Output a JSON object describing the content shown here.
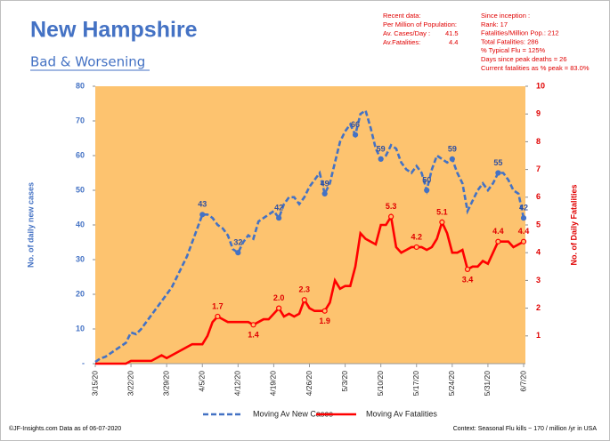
{
  "header": {
    "title": "New Hampshire",
    "subtitle": "Bad & Worsening"
  },
  "recent_data": {
    "heading": "Recent data:",
    "basis": "Per Million of Population:",
    "rows": [
      [
        "Av. Cases/Day :",
        "41.5"
      ],
      [
        "Av.Fatalities:",
        "4.4"
      ]
    ]
  },
  "since_inception": [
    "Since inception :",
    "Rank: 17",
    "Fatalities/Million Pop.: 212",
    "Total Fatalities: 286",
    "% Typical Flu = 125%",
    "Days since peak deaths = 26",
    "Current fatalities as % peak = 83.0%"
  ],
  "footer": {
    "source": "©JF-Insights.com  Data as of 06-07-2020",
    "context": "Context: Seasonal Flu kills ~ 170 / million /yr in USA"
  },
  "chart_data": {
    "type": "line",
    "y_label": "No. of daily new  cases",
    "y2_label": "No. of Daily Fatalities",
    "categories": [
      "3/15/20",
      null,
      null,
      null,
      null,
      null,
      null,
      "3/22/20",
      null,
      null,
      null,
      null,
      null,
      null,
      "3/29/20",
      null,
      null,
      null,
      null,
      null,
      null,
      "4/5/20",
      null,
      null,
      null,
      null,
      null,
      null,
      "4/12/20",
      null,
      null,
      null,
      null,
      null,
      null,
      "4/19/20",
      null,
      null,
      null,
      null,
      null,
      null,
      "4/26/20",
      null,
      null,
      null,
      null,
      null,
      null,
      "5/3/20",
      null,
      null,
      null,
      null,
      null,
      null,
      "5/10/20",
      null,
      null,
      null,
      null,
      null,
      null,
      "5/17/20",
      null,
      null,
      null,
      null,
      null,
      null,
      "5/24/20",
      null,
      null,
      null,
      null,
      null,
      null,
      "5/31/20",
      null,
      null,
      null,
      null,
      null,
      null,
      "6/7/20"
    ],
    "ylim": [
      0,
      80
    ],
    "yticks": [
      {
        "value": 0,
        "label": "-"
      },
      10,
      20,
      30,
      40,
      50,
      60,
      70,
      80
    ],
    "y2lim": [
      0,
      10
    ],
    "y2ticks": [
      1,
      2,
      3,
      4,
      5,
      6,
      7,
      8,
      9,
      10
    ],
    "legend": "bottom",
    "series": [
      {
        "name": "Moving Av New Cases",
        "color": "#4472c4",
        "dashed": true,
        "values": [
          0.5,
          1.5,
          2,
          3,
          4,
          5,
          6,
          9,
          8.5,
          10,
          12,
          14,
          16,
          18,
          20,
          22,
          25,
          28,
          31,
          35,
          39,
          43,
          43,
          42,
          40,
          39,
          37,
          33,
          32,
          35,
          37,
          36,
          41,
          42,
          43,
          44,
          42,
          46,
          48,
          48,
          46,
          48,
          51,
          53,
          55,
          49,
          52,
          58,
          64,
          67,
          69,
          66,
          72,
          73,
          68,
          62,
          59,
          60,
          63,
          62,
          58,
          56,
          55,
          57,
          55,
          50,
          56,
          60,
          59,
          58,
          59,
          55,
          52,
          44,
          47,
          50,
          52,
          50,
          52,
          55,
          55,
          53,
          50,
          49,
          42
        ],
        "value_labels": [
          null,
          null,
          null,
          null,
          null,
          null,
          null,
          null,
          null,
          null,
          null,
          null,
          null,
          null,
          null,
          null,
          null,
          null,
          null,
          null,
          null,
          "43",
          null,
          null,
          null,
          null,
          null,
          null,
          "32",
          null,
          null,
          null,
          null,
          null,
          null,
          null,
          "42",
          null,
          null,
          null,
          null,
          null,
          null,
          null,
          null,
          "49",
          null,
          null,
          null,
          null,
          null,
          "66",
          null,
          null,
          null,
          null,
          "59",
          null,
          null,
          null,
          null,
          null,
          null,
          null,
          null,
          "50",
          null,
          null,
          null,
          null,
          "59",
          null,
          null,
          null,
          null,
          null,
          null,
          null,
          null,
          "55",
          null,
          null,
          null,
          null,
          "42"
        ]
      },
      {
        "name": "Moving Av Fatalities",
        "color": "#ff0000",
        "axis": "y2",
        "dashed": false,
        "values": [
          0,
          0,
          0,
          0,
          0,
          0,
          0,
          0.1,
          0.1,
          0.1,
          0.1,
          0.1,
          0.2,
          0.3,
          0.2,
          0.3,
          0.4,
          0.5,
          0.6,
          0.7,
          0.7,
          0.7,
          1.0,
          1.5,
          1.7,
          1.6,
          1.5,
          1.5,
          1.5,
          1.5,
          1.5,
          1.4,
          1.5,
          1.6,
          1.6,
          1.8,
          2.0,
          1.7,
          1.8,
          1.7,
          1.8,
          2.3,
          2.0,
          1.9,
          1.9,
          1.9,
          2.2,
          3.0,
          2.7,
          2.8,
          2.8,
          3.5,
          4.7,
          4.5,
          4.4,
          4.3,
          5.0,
          5.0,
          5.3,
          4.2,
          4.0,
          4.1,
          4.2,
          4.2,
          4.2,
          4.1,
          4.2,
          4.5,
          5.1,
          4.7,
          4.0,
          4.0,
          4.1,
          3.4,
          3.5,
          3.5,
          3.7,
          3.6,
          4.0,
          4.4,
          4.4,
          4.4,
          4.2,
          4.3,
          4.4
        ],
        "value_labels": [
          null,
          null,
          null,
          null,
          null,
          null,
          null,
          null,
          null,
          null,
          null,
          null,
          null,
          null,
          null,
          null,
          null,
          null,
          null,
          null,
          null,
          null,
          null,
          null,
          "1.7",
          null,
          null,
          null,
          null,
          null,
          null,
          "1.4",
          null,
          null,
          null,
          null,
          "2.0",
          null,
          null,
          null,
          null,
          "2.3",
          null,
          null,
          null,
          "1.9",
          null,
          null,
          null,
          null,
          null,
          null,
          null,
          null,
          null,
          null,
          null,
          null,
          "5.3",
          null,
          null,
          null,
          null,
          "4.2",
          null,
          null,
          null,
          null,
          "5.1",
          null,
          null,
          null,
          null,
          "3.4",
          null,
          null,
          null,
          null,
          null,
          "4.4",
          null,
          null,
          null,
          null,
          "4.4"
        ]
      }
    ]
  }
}
